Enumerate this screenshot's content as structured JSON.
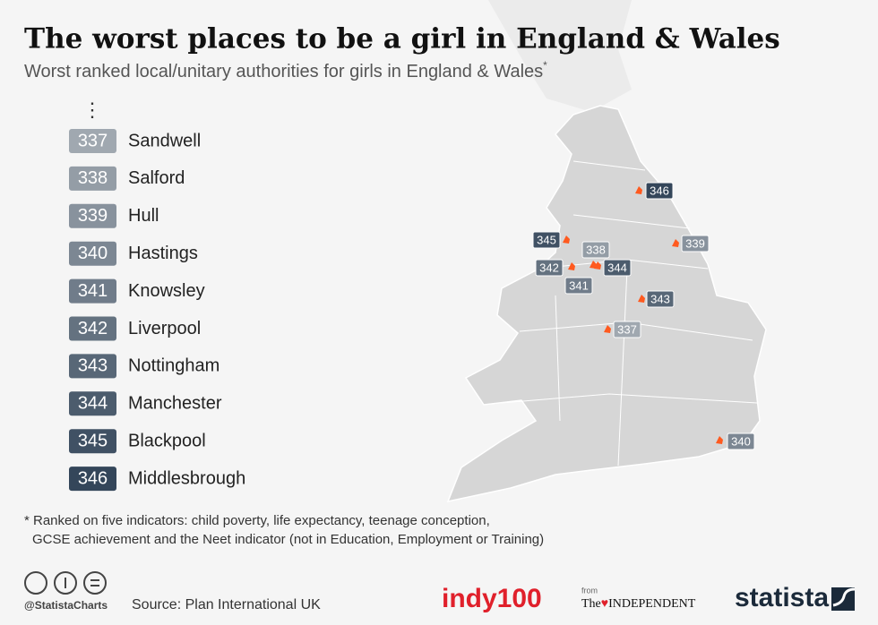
{
  "header": {
    "title": "The worst places to be a girl in England & Wales",
    "subtitle": "Worst ranked local/unitary authorities for girls in England & Wales",
    "subtitle_mark": "*"
  },
  "list": {
    "ellipsis": "⋮",
    "items": [
      {
        "rank": 337,
        "name": "Sandwell"
      },
      {
        "rank": 338,
        "name": "Salford"
      },
      {
        "rank": 339,
        "name": "Hull"
      },
      {
        "rank": 340,
        "name": "Hastings"
      },
      {
        "rank": 341,
        "name": "Knowsley"
      },
      {
        "rank": 342,
        "name": "Liverpool"
      },
      {
        "rank": 343,
        "name": "Nottingham"
      },
      {
        "rank": 344,
        "name": "Manchester"
      },
      {
        "rank": 345,
        "name": "Blackpool"
      },
      {
        "rank": 346,
        "name": "Middlesbrough"
      }
    ]
  },
  "footnote": [
    "* Ranked on five indicators: child poverty, life expectancy, teenage conception,",
    "GCSE achievement and the Neet indicator (not in Education, Employment or Training)"
  ],
  "footer": {
    "handle": "@StatistaCharts",
    "source": "Source: Plan International UK",
    "logos": {
      "indy": "indy100",
      "from": "from",
      "the": "The",
      "independent": "INDEPENDENT",
      "statista": "statista"
    }
  }
}
